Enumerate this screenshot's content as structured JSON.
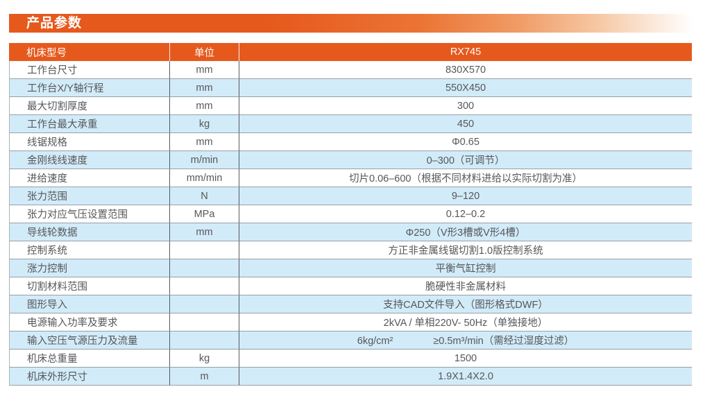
{
  "page": {
    "title": "产品参数"
  },
  "colors": {
    "accent_orange": "#e6591d",
    "row_blue": "#d2ebf8",
    "text_gray": "#55575a",
    "header_text": "#ffffff"
  },
  "table": {
    "header": {
      "model_label": "机床型号",
      "unit_label": "单位",
      "model_value": "RX745"
    },
    "rows": [
      {
        "name": "工作台尺寸",
        "unit": "mm",
        "value": "830X570"
      },
      {
        "name": "工作台X/Y轴行程",
        "unit": "mm",
        "value": "550X450"
      },
      {
        "name": "最大切割厚度",
        "unit": "mm",
        "value": "300"
      },
      {
        "name": "工作台最大承重",
        "unit": "kg",
        "value": "450"
      },
      {
        "name": "线锯规格",
        "unit": "mm",
        "value": "Φ0.65"
      },
      {
        "name": "金刚线线速度",
        "unit": "m/min",
        "value": "0–300（可调节）"
      },
      {
        "name": "进给速度",
        "unit": "mm/min",
        "value": "切片0.06–600（根据不同材料进给以实际切割为准）"
      },
      {
        "name": "张力范围",
        "unit": "N",
        "value": "9–120"
      },
      {
        "name": "张力对应气压设置范围",
        "unit": "MPa",
        "value": "0.12–0.2"
      },
      {
        "name": "导线轮数据",
        "unit": "mm",
        "value": "Φ250（V形3槽或V形4槽）"
      },
      {
        "name": "控制系统",
        "unit": "",
        "value": "方正非金属线锯切割1.0版控制系统"
      },
      {
        "name": "涨力控制",
        "unit": "",
        "value": "平衡气缸控制"
      },
      {
        "name": "切割材料范围",
        "unit": "",
        "value": "脆硬性非金属材料"
      },
      {
        "name": "图形导入",
        "unit": "",
        "value": "支持CAD文件导入（图形格式DWF）"
      },
      {
        "name": "电源输入功率及要求",
        "unit": "",
        "value": "2kVA / 单相220V- 50Hz（单独接地）"
      },
      {
        "name": "输入空压气源压力及流量",
        "unit": "",
        "value": "6kg/cm²　　　　≥0.5m³/min（需经过湿度过滤）"
      },
      {
        "name": "机床总重量",
        "unit": "kg",
        "value": "1500"
      },
      {
        "name": "机床外形尺寸",
        "unit": "m",
        "value": "1.9X1.4X2.0"
      }
    ]
  }
}
